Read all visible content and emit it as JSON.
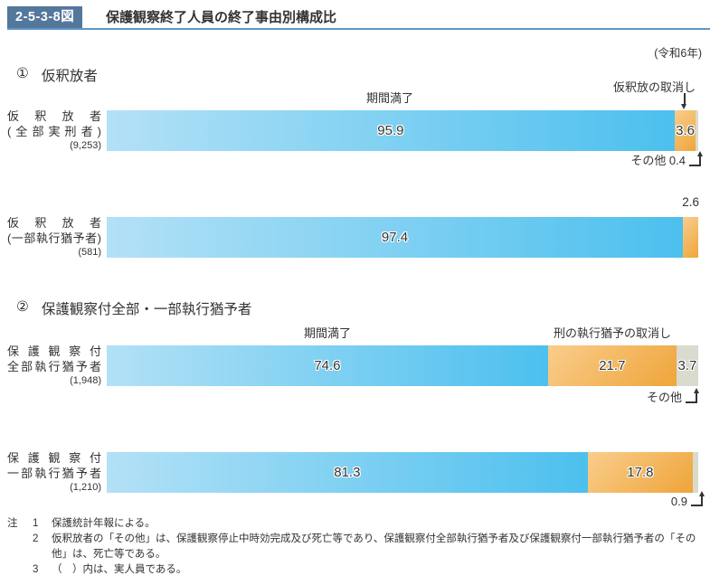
{
  "header": {
    "figure_no": "2-5-3-8図",
    "title": "保護観察終了人員の終了事由別構成比",
    "year": "(令和6年)"
  },
  "sections": [
    {
      "marker": "①",
      "title": "仮釈放者"
    },
    {
      "marker": "②",
      "title": "保護観察付全部・一部執行猶予者"
    }
  ],
  "chart_data": {
    "type": "bar",
    "orientation": "horizontal",
    "stacked": true,
    "value_unit": "percent",
    "title": "保護観察終了人員の終了事由別構成比",
    "year_label": "令和6年",
    "segment_colors": {
      "period_expiry_gradient_left": "#b3e1f6",
      "period_expiry_gradient_right": "#4cc0ee",
      "revocation_gradient_light": "#f9cd8c",
      "revocation_gradient_dark": "#efa53a",
      "other": "#d9dbce"
    },
    "bars": [
      {
        "section": "仮釈放者",
        "label_lines": [
          "仮釈放者",
          "(全部実刑者)",
          "(9,253)"
        ],
        "real_count": "9,253",
        "segments": [
          {
            "name": "期間満了",
            "value": 95.9,
            "color": "blue",
            "label_inside": true
          },
          {
            "name": "仮釈放の取消し",
            "value": 3.6,
            "color": "orange",
            "label_inside": true
          },
          {
            "name": "その他",
            "value": 0.4,
            "color": "gray",
            "label_inside": false
          }
        ]
      },
      {
        "section": "仮釈放者",
        "label_lines": [
          "仮釈放者",
          "(一部執行猶予者)",
          "(581)"
        ],
        "real_count": "581",
        "segments": [
          {
            "name": "期間満了",
            "value": 97.4,
            "color": "blue",
            "label_inside": true
          },
          {
            "name": "仮釈放の取消し",
            "value": 2.6,
            "color": "orange",
            "label_inside": false
          }
        ]
      },
      {
        "section": "保護観察付全部・一部執行猶予者",
        "label_lines": [
          "保護観察付",
          "全部執行猶予者",
          "(1,948)"
        ],
        "real_count": "1,948",
        "segments": [
          {
            "name": "期間満了",
            "value": 74.6,
            "color": "blue",
            "label_inside": true
          },
          {
            "name": "刑の執行猶予の取消し",
            "value": 21.7,
            "color": "orange",
            "label_inside": true
          },
          {
            "name": "その他",
            "value": 3.7,
            "color": "gray",
            "label_inside": true
          }
        ]
      },
      {
        "section": "保護観察付全部・一部執行猶予者",
        "label_lines": [
          "保護観察付",
          "一部執行猶予者",
          "(1,210)"
        ],
        "real_count": "1,210",
        "segments": [
          {
            "name": "期間満了",
            "value": 81.3,
            "color": "blue",
            "label_inside": true
          },
          {
            "name": "刑の執行猶予の取消し",
            "value": 17.8,
            "color": "orange",
            "label_inside": true
          },
          {
            "name": "その他",
            "value": 0.9,
            "color": "gray",
            "label_inside": false
          }
        ]
      }
    ]
  },
  "annotations": {
    "bar1": {
      "period_label": "期間満了",
      "revoke_label": "仮釈放の取消し",
      "other_label": "その他 0.4"
    },
    "bar2": {
      "value_above": "2.6"
    },
    "bar3": {
      "period_label": "期間満了",
      "revoke_label": "刑の執行猶予の取消し",
      "other_label": "その他"
    },
    "bar4": {
      "other_label": "0.9"
    }
  },
  "notes": {
    "prefix": "注",
    "items": [
      {
        "num": "1",
        "text": "保護統計年報による。"
      },
      {
        "num": "2",
        "text": "仮釈放者の「その他」は、保護観察停止中時効完成及び死亡等であり、保護観察付全部執行猶予者及び保護観察付一部執行猶予者の「その他」は、死亡等である。"
      },
      {
        "num": "3",
        "text": "（　）内は、実人員である。"
      }
    ]
  }
}
